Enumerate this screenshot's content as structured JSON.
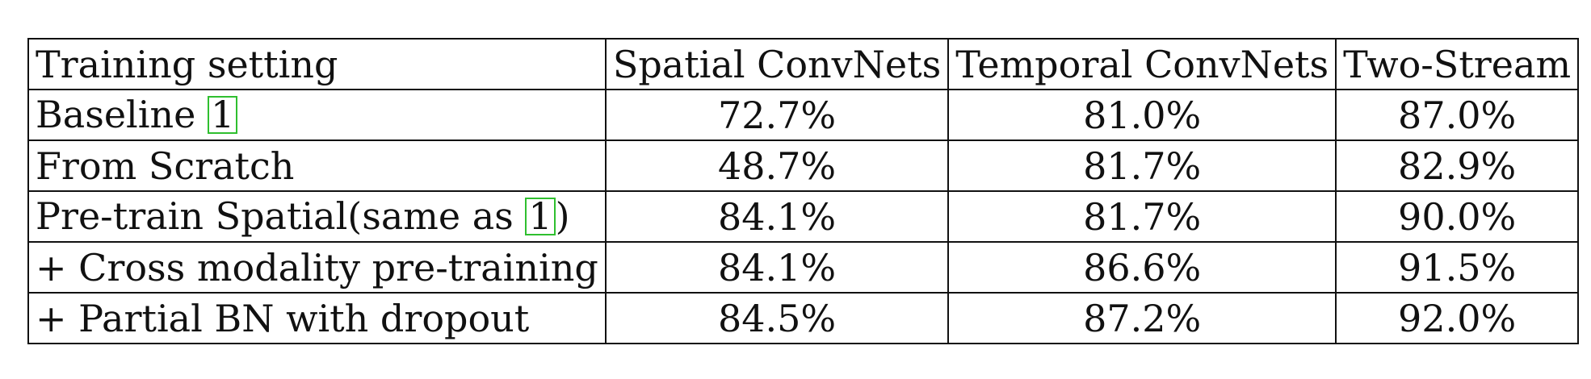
{
  "table": {
    "headers": [
      "Training setting",
      "Spatial ConvNets",
      "Temporal ConvNets",
      "Two-Stream"
    ],
    "rows": [
      {
        "setting": "Baseline ",
        "cite": "1",
        "setting_suffix": "",
        "values": [
          "72.7%",
          "81.0%",
          "87.0%"
        ]
      },
      {
        "setting": "From Scratch",
        "cite": "",
        "setting_suffix": "",
        "values": [
          "48.7%",
          "81.7%",
          "82.9%"
        ]
      },
      {
        "setting": "Pre-train Spatial(same as ",
        "cite": "1",
        "setting_suffix": ")",
        "values": [
          "84.1%",
          "81.7%",
          "90.0%"
        ]
      },
      {
        "setting": "+ Cross modality pre-training",
        "cite": "",
        "setting_suffix": "",
        "values": [
          "84.1%",
          "86.6%",
          "91.5%"
        ]
      },
      {
        "setting": "+ Partial BN with dropout",
        "cite": "",
        "setting_suffix": "",
        "values": [
          "84.5%",
          "87.2%",
          "92.0%"
        ]
      }
    ],
    "citation_box_color": "#2fbf2f"
  }
}
